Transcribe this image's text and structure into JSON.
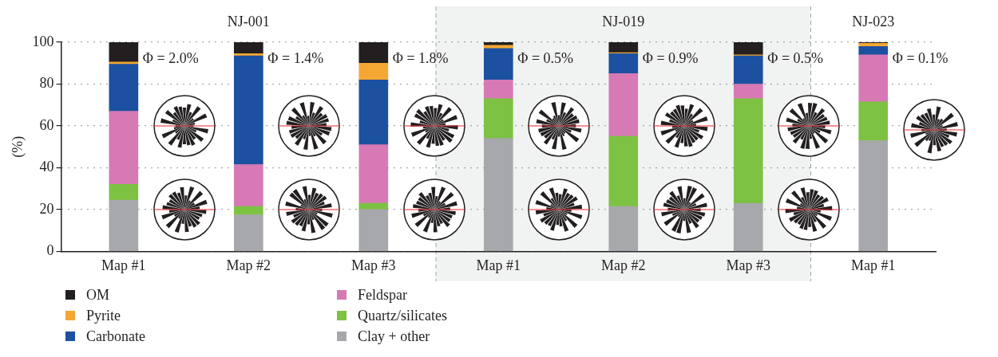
{
  "chart_data": {
    "type": "bar",
    "stacked": true,
    "ylabel": "(%)",
    "categories": [
      "Map #1",
      "Map #2",
      "Map #3",
      "Map #1",
      "Map #2",
      "Map #3",
      "Map #1"
    ],
    "series": [
      {
        "name": "Clay + other",
        "color": "#a7a8ab",
        "values": [
          24.5,
          17.5,
          20,
          54,
          21.5,
          23,
          53
        ]
      },
      {
        "name": "Quartz/silicates",
        "color": "#7dc242",
        "values": [
          7.5,
          4,
          3,
          19,
          33.5,
          50,
          18.5
        ]
      },
      {
        "name": "Feldspar",
        "color": "#d679b4",
        "values": [
          35,
          20,
          28,
          9,
          30,
          7,
          22.5
        ]
      },
      {
        "name": "Carbonate",
        "color": "#1c50a0",
        "values": [
          22.5,
          52,
          31,
          15,
          9.5,
          13.5,
          4
        ]
      },
      {
        "name": "Pyrite",
        "color": "#f5a733",
        "values": [
          1,
          1,
          8,
          1.5,
          0.5,
          0.5,
          1.5
        ]
      },
      {
        "name": "OM",
        "color": "#231f20",
        "values": [
          9.5,
          5.5,
          10,
          1.5,
          5,
          6,
          0.5
        ]
      }
    ],
    "ylim": [
      0,
      100
    ],
    "yticks": [
      0,
      20,
      40,
      60,
      80,
      100
    ],
    "grid": "y",
    "legend": "bottom",
    "annotations": [
      "NJ-001",
      "NJ-019",
      "NJ-023",
      "Φ = 2.0%",
      "Φ = 1.4%",
      "Φ = 1.8%",
      "Φ = 0.5%",
      "Φ = 0.9%",
      "Φ = 0.5%",
      "Φ = 0.1%"
    ]
  }
}
